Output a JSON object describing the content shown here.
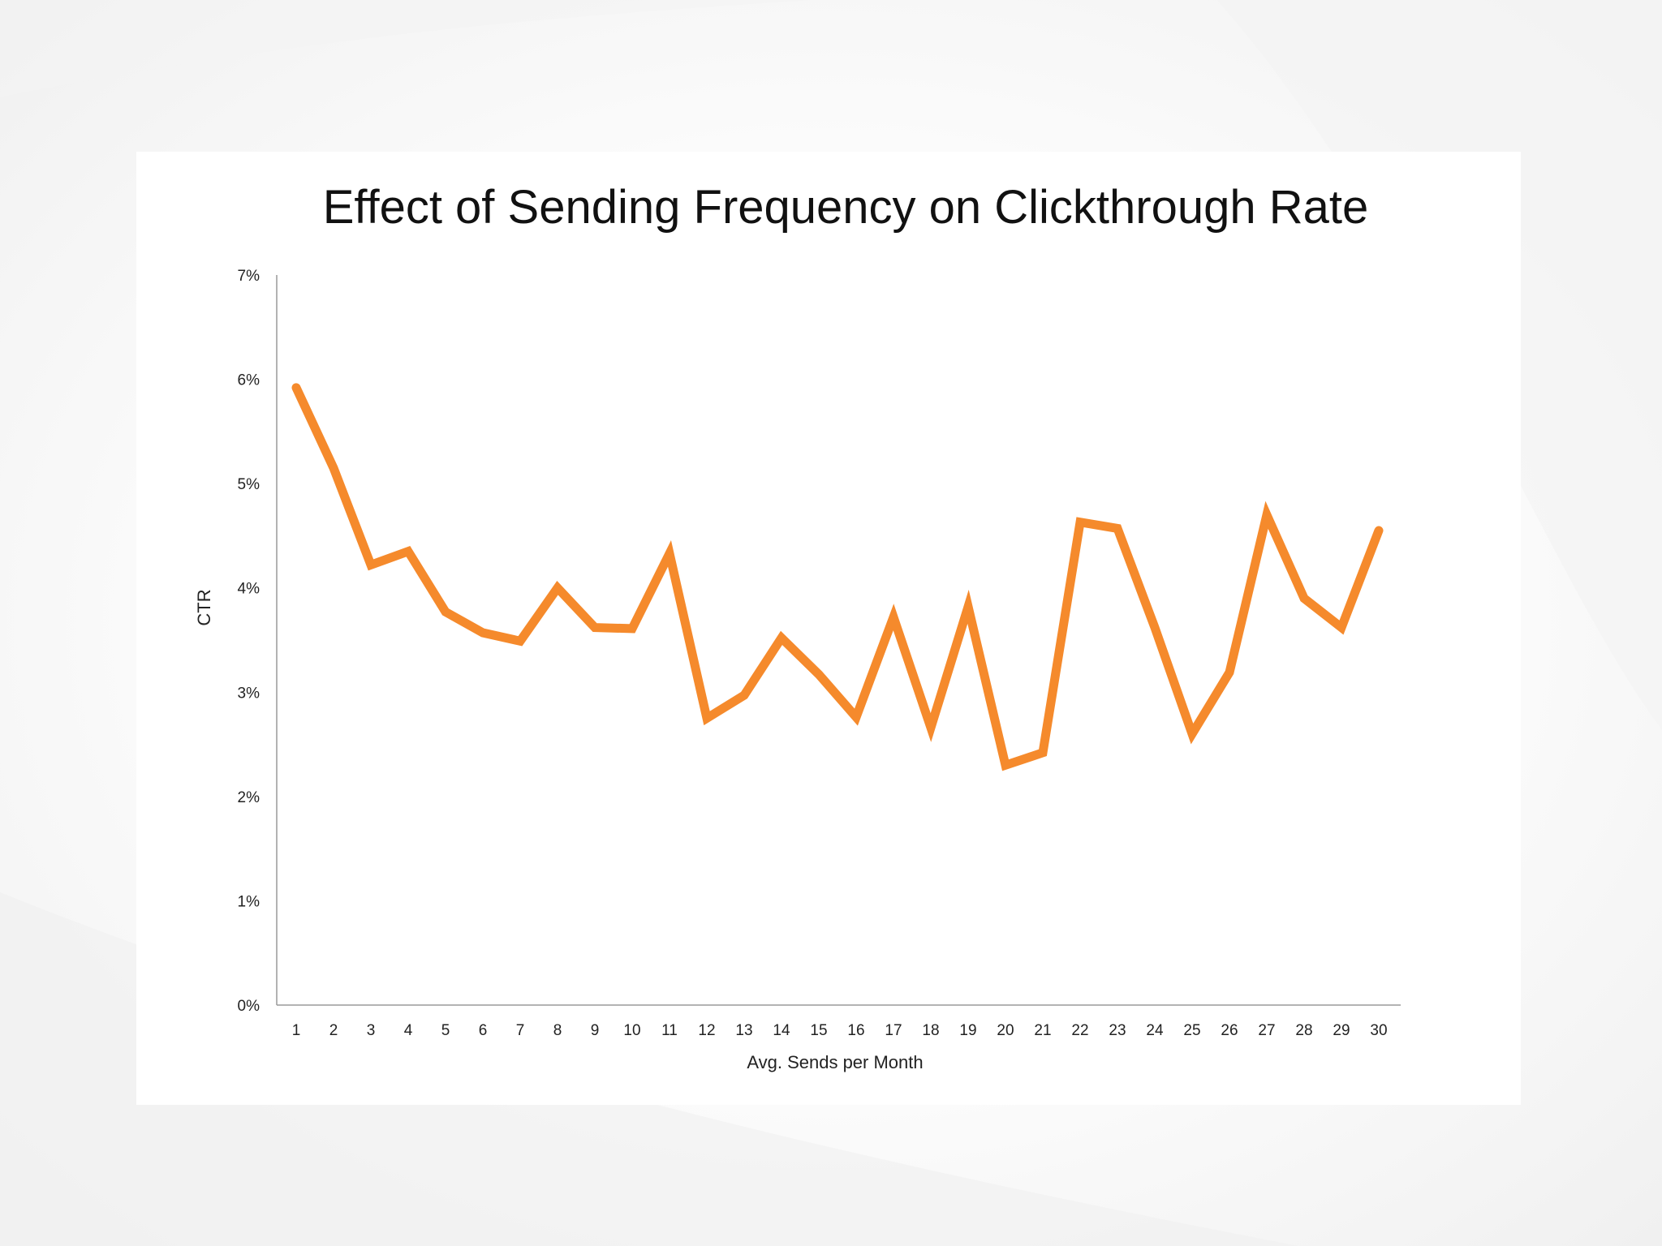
{
  "chart_data": {
    "type": "line",
    "title": "Effect of Sending Frequency on Clickthrough Rate",
    "xlabel": "Avg. Sends per Month",
    "ylabel": "CTR",
    "x": [
      1,
      2,
      3,
      4,
      5,
      6,
      7,
      8,
      9,
      10,
      11,
      12,
      13,
      14,
      15,
      16,
      17,
      18,
      19,
      20,
      21,
      22,
      23,
      24,
      25,
      26,
      27,
      28,
      29,
      30
    ],
    "y_ticks": [
      "0%",
      "1%",
      "2%",
      "3%",
      "4%",
      "5%",
      "6%",
      "7%"
    ],
    "ylim": [
      0,
      7
    ],
    "grid": false,
    "legend": "none",
    "series": [
      {
        "values": [
          5.92,
          5.15,
          4.22,
          4.35,
          3.77,
          3.57,
          3.49,
          4.0,
          3.62,
          3.61,
          4.33,
          2.75,
          2.97,
          3.52,
          3.17,
          2.76,
          3.72,
          2.66,
          3.82,
          2.3,
          2.42,
          4.63,
          4.57,
          3.62,
          2.6,
          3.19,
          4.7,
          3.9,
          3.62,
          4.55
        ],
        "color": "#f58a2c"
      }
    ]
  }
}
